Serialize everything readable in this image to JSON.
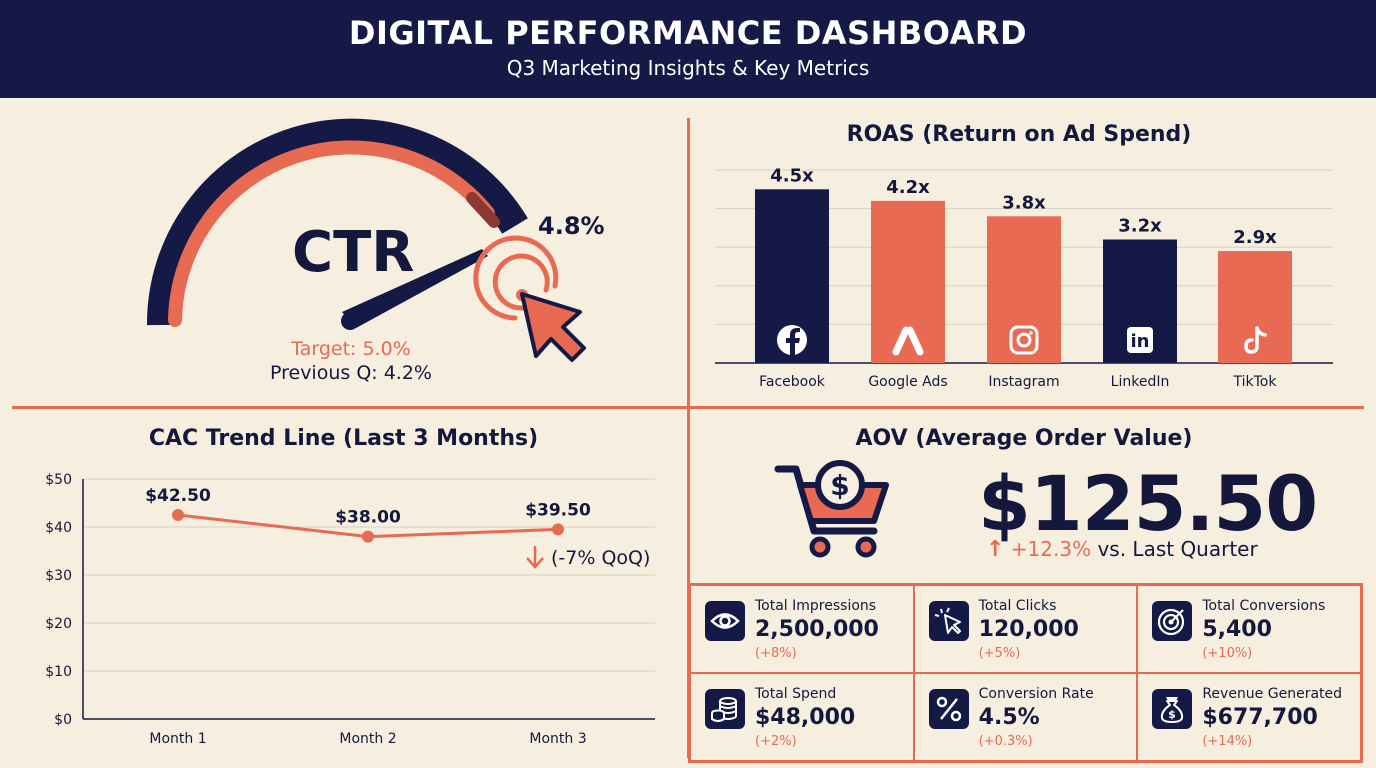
{
  "header": {
    "title": "DIGITAL PERFORMANCE DASHBOARD",
    "subtitle": "Q3 Marketing Insights & Key Metrics"
  },
  "colors": {
    "navy": "#141a45",
    "coral": "#e86a52",
    "background": "#f6efe0"
  },
  "ctr": {
    "label": "CTR",
    "value_text": "4.8%",
    "value": 4.8,
    "target_text": "Target: 5.0%",
    "target": 5.0,
    "previous_text": "Previous Q: 4.2%",
    "previous": 4.2,
    "icon": "cursor-click-icon"
  },
  "chart_data": [
    {
      "type": "bar",
      "title": "ROAS (Return on Ad Spend)",
      "categories": [
        "Facebook",
        "Google Ads",
        "Instagram",
        "LinkedIn",
        "TikTok"
      ],
      "values": [
        4.5,
        4.2,
        3.8,
        3.2,
        2.9
      ],
      "value_labels": [
        "4.5x",
        "4.2x",
        "3.8x",
        "3.2x",
        "2.9x"
      ],
      "bar_colors": [
        "#141a45",
        "#e86a52",
        "#e86a52",
        "#141a45",
        "#e86a52"
      ],
      "icons": [
        "facebook-icon",
        "google-ads-icon",
        "instagram-icon",
        "linkedin-icon",
        "tiktok-icon"
      ],
      "ylim": [
        0,
        5
      ],
      "grid": true
    },
    {
      "type": "line",
      "title": "CAC Trend Line (Last 3 Months)",
      "categories": [
        "Month 1",
        "Month 2",
        "Month 3"
      ],
      "values": [
        42.5,
        38.0,
        39.5
      ],
      "value_labels": [
        "$42.50",
        "$38.00",
        "$39.50"
      ],
      "yticks": [
        "$0",
        "$10",
        "$20",
        "$30",
        "$40",
        "$50"
      ],
      "ylim": [
        0,
        50
      ],
      "grid": true,
      "annotation": "(-7% QoQ)",
      "annotation_icon": "arrow-down-icon"
    }
  ],
  "aov": {
    "title": "AOV (Average Order Value)",
    "value": "$125.50",
    "change_arrow": "↑",
    "change_pct": "+12.3%",
    "change_suffix": " vs. Last Quarter",
    "icon": "shopping-cart-dollar-icon"
  },
  "kpis": [
    {
      "label": "Total Impressions",
      "value": "2,500,000",
      "change": "(+8%)",
      "icon": "eye-icon"
    },
    {
      "label": "Total Clicks",
      "value": "120,000",
      "change": "(+5%)",
      "icon": "click-icon"
    },
    {
      "label": "Total Conversions",
      "value": "5,400",
      "change": "(+10%)",
      "icon": "target-icon"
    },
    {
      "label": "Total Spend",
      "value": "$48,000",
      "change": "(+2%)",
      "icon": "coins-icon"
    },
    {
      "label": "Conversion Rate",
      "value": "4.5%",
      "change": "(+0.3%)",
      "icon": "percent-icon"
    },
    {
      "label": "Revenue Generated",
      "value": "$677,700",
      "change": "(+14%)",
      "icon": "money-bag-icon"
    }
  ]
}
